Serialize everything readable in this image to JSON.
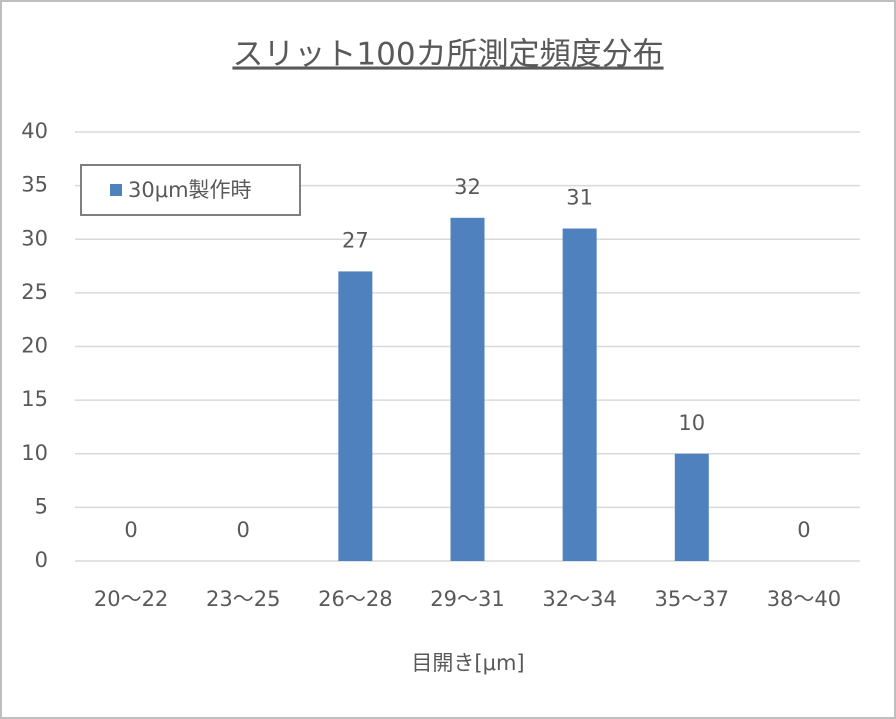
{
  "chart_data": {
    "type": "bar",
    "title": "スリット100カ所測定頻度分布",
    "x_label": "目開き[μm]",
    "categories": [
      "20～22",
      "23～25",
      "26～28",
      "29～31",
      "32～34",
      "35～37",
      "38～40"
    ],
    "series": [
      {
        "name": "30μm製作時",
        "color": "#4e81bd",
        "values": [
          0,
          0,
          27,
          32,
          31,
          10,
          0
        ]
      }
    ],
    "ylim": [
      0,
      40
    ],
    "yticks": [
      0,
      5,
      10,
      15,
      20,
      25,
      30,
      35,
      40
    ],
    "grid": true,
    "legend": "top-left",
    "data_labels": true
  }
}
